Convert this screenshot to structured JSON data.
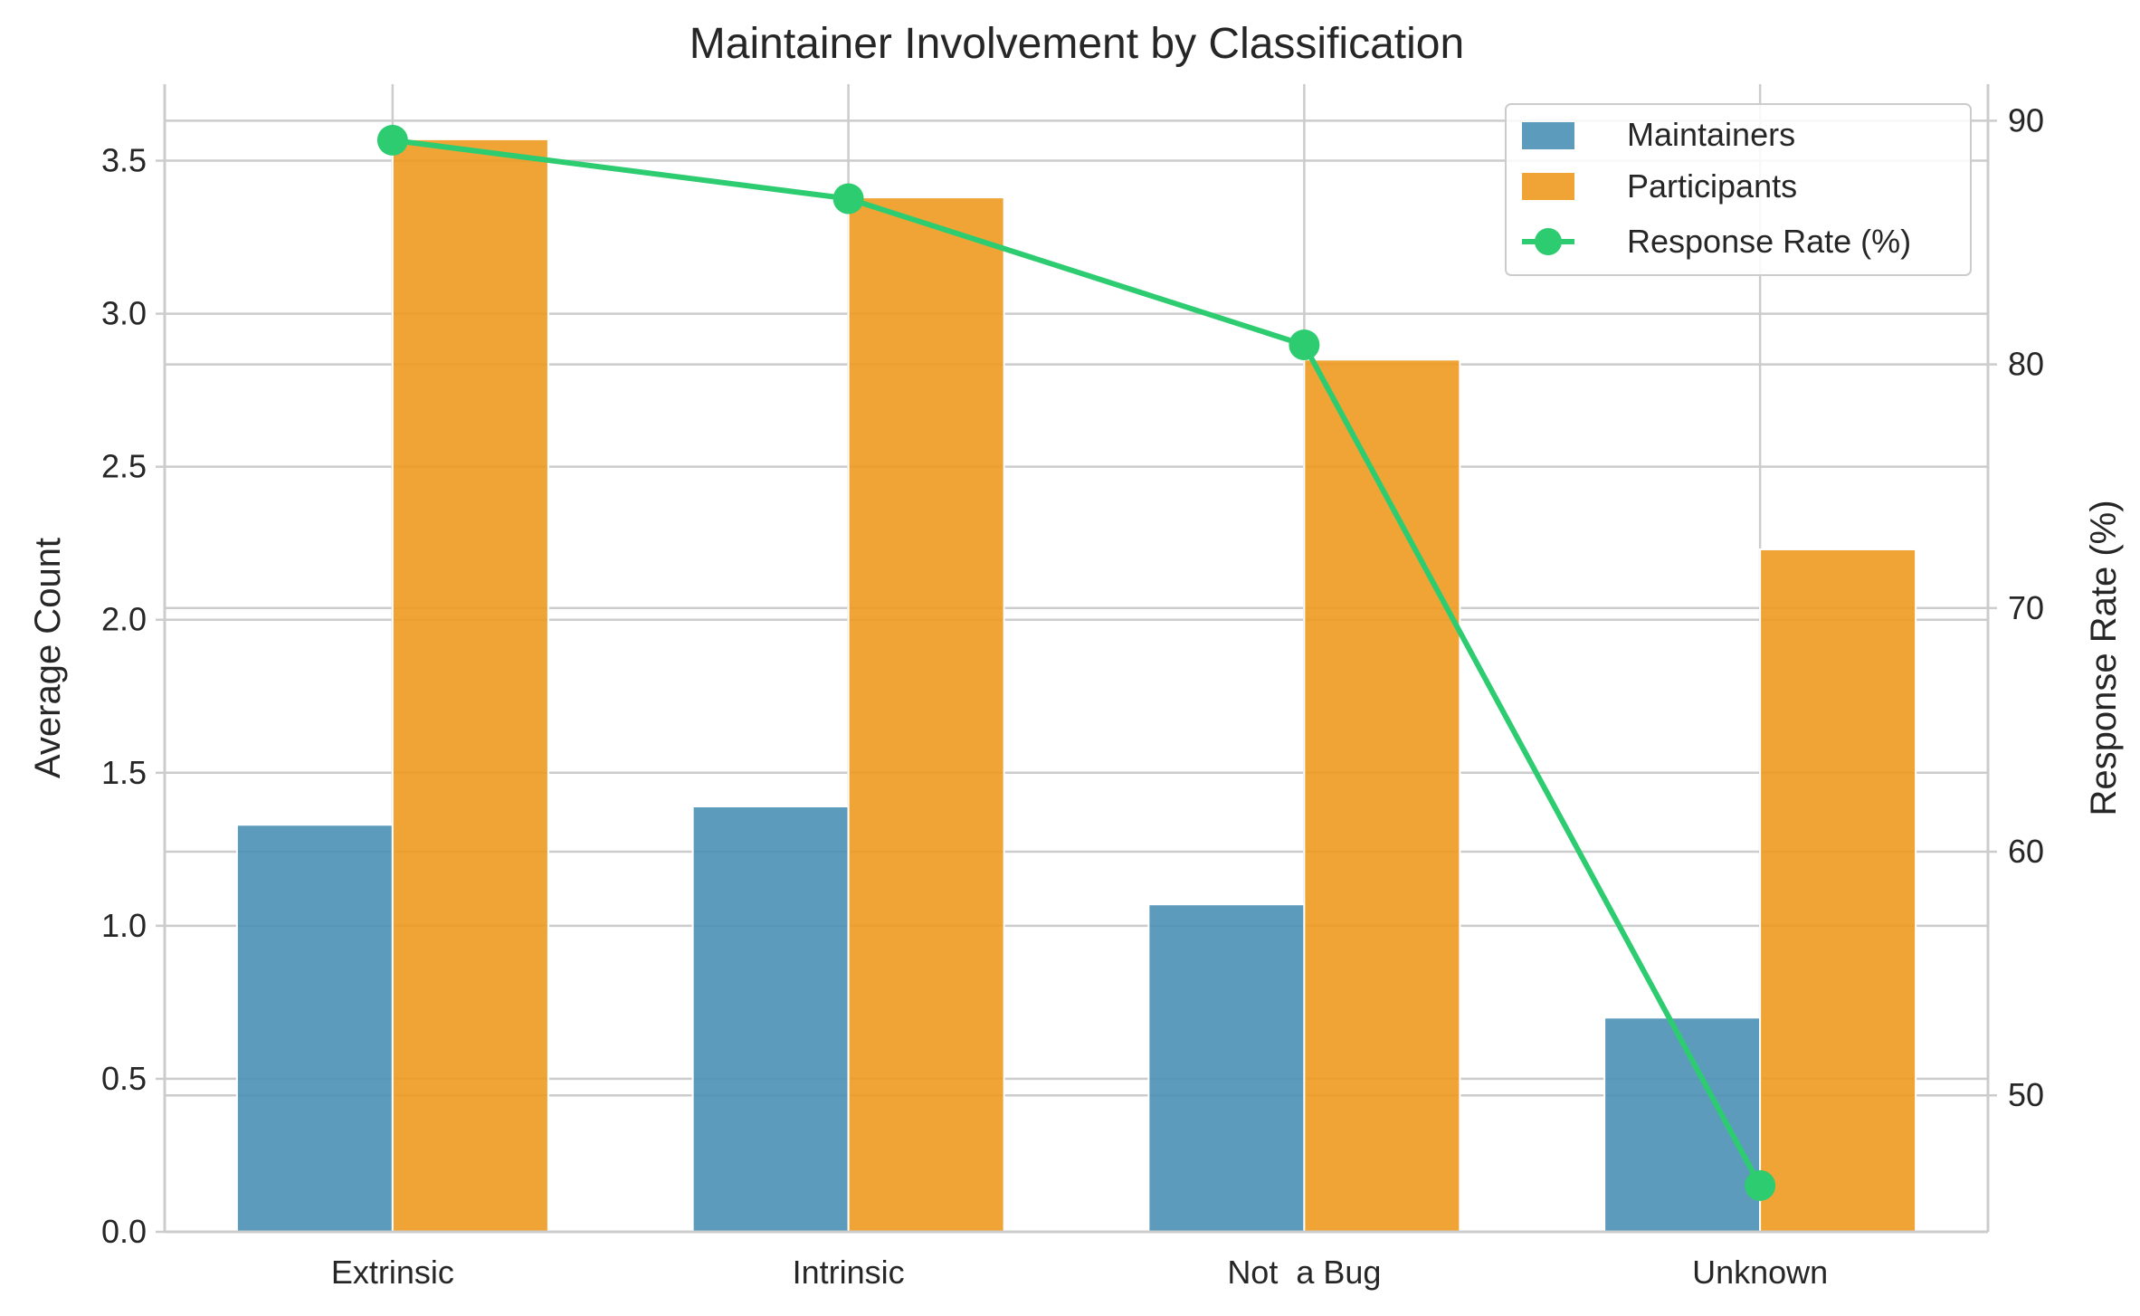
{
  "chart_data": {
    "type": "bar",
    "title": "Maintainer Involvement by Classification",
    "xlabel": "",
    "ylabel": "Average Count",
    "y2label": "Response Rate (%)",
    "categories": [
      "Extrinsic",
      "Intrinsic",
      "Not  a Bug",
      "Unknown"
    ],
    "ylim": [
      0,
      3.75
    ],
    "y2lim": [
      44.4,
      91.5
    ],
    "yticks": [
      "0.0",
      "0.5",
      "1.0",
      "1.5",
      "2.0",
      "2.5",
      "3.0",
      "3.5"
    ],
    "y2ticks": [
      "50",
      "60",
      "70",
      "80",
      "90"
    ],
    "grid": true,
    "legend_position": "top-right",
    "series": [
      {
        "name": "Maintainers",
        "type": "bar",
        "axis": "left",
        "color": "#4a90b5",
        "values": [
          1.33,
          1.39,
          1.07,
          0.7
        ]
      },
      {
        "name": "Participants",
        "type": "bar",
        "axis": "left",
        "color": "#ee9a20",
        "values": [
          3.57,
          3.38,
          2.85,
          2.23
        ]
      },
      {
        "name": "Response Rate (%)",
        "type": "line",
        "axis": "right",
        "color": "#2ecc71",
        "values": [
          89.2,
          86.8,
          80.8,
          46.3
        ]
      }
    ]
  }
}
